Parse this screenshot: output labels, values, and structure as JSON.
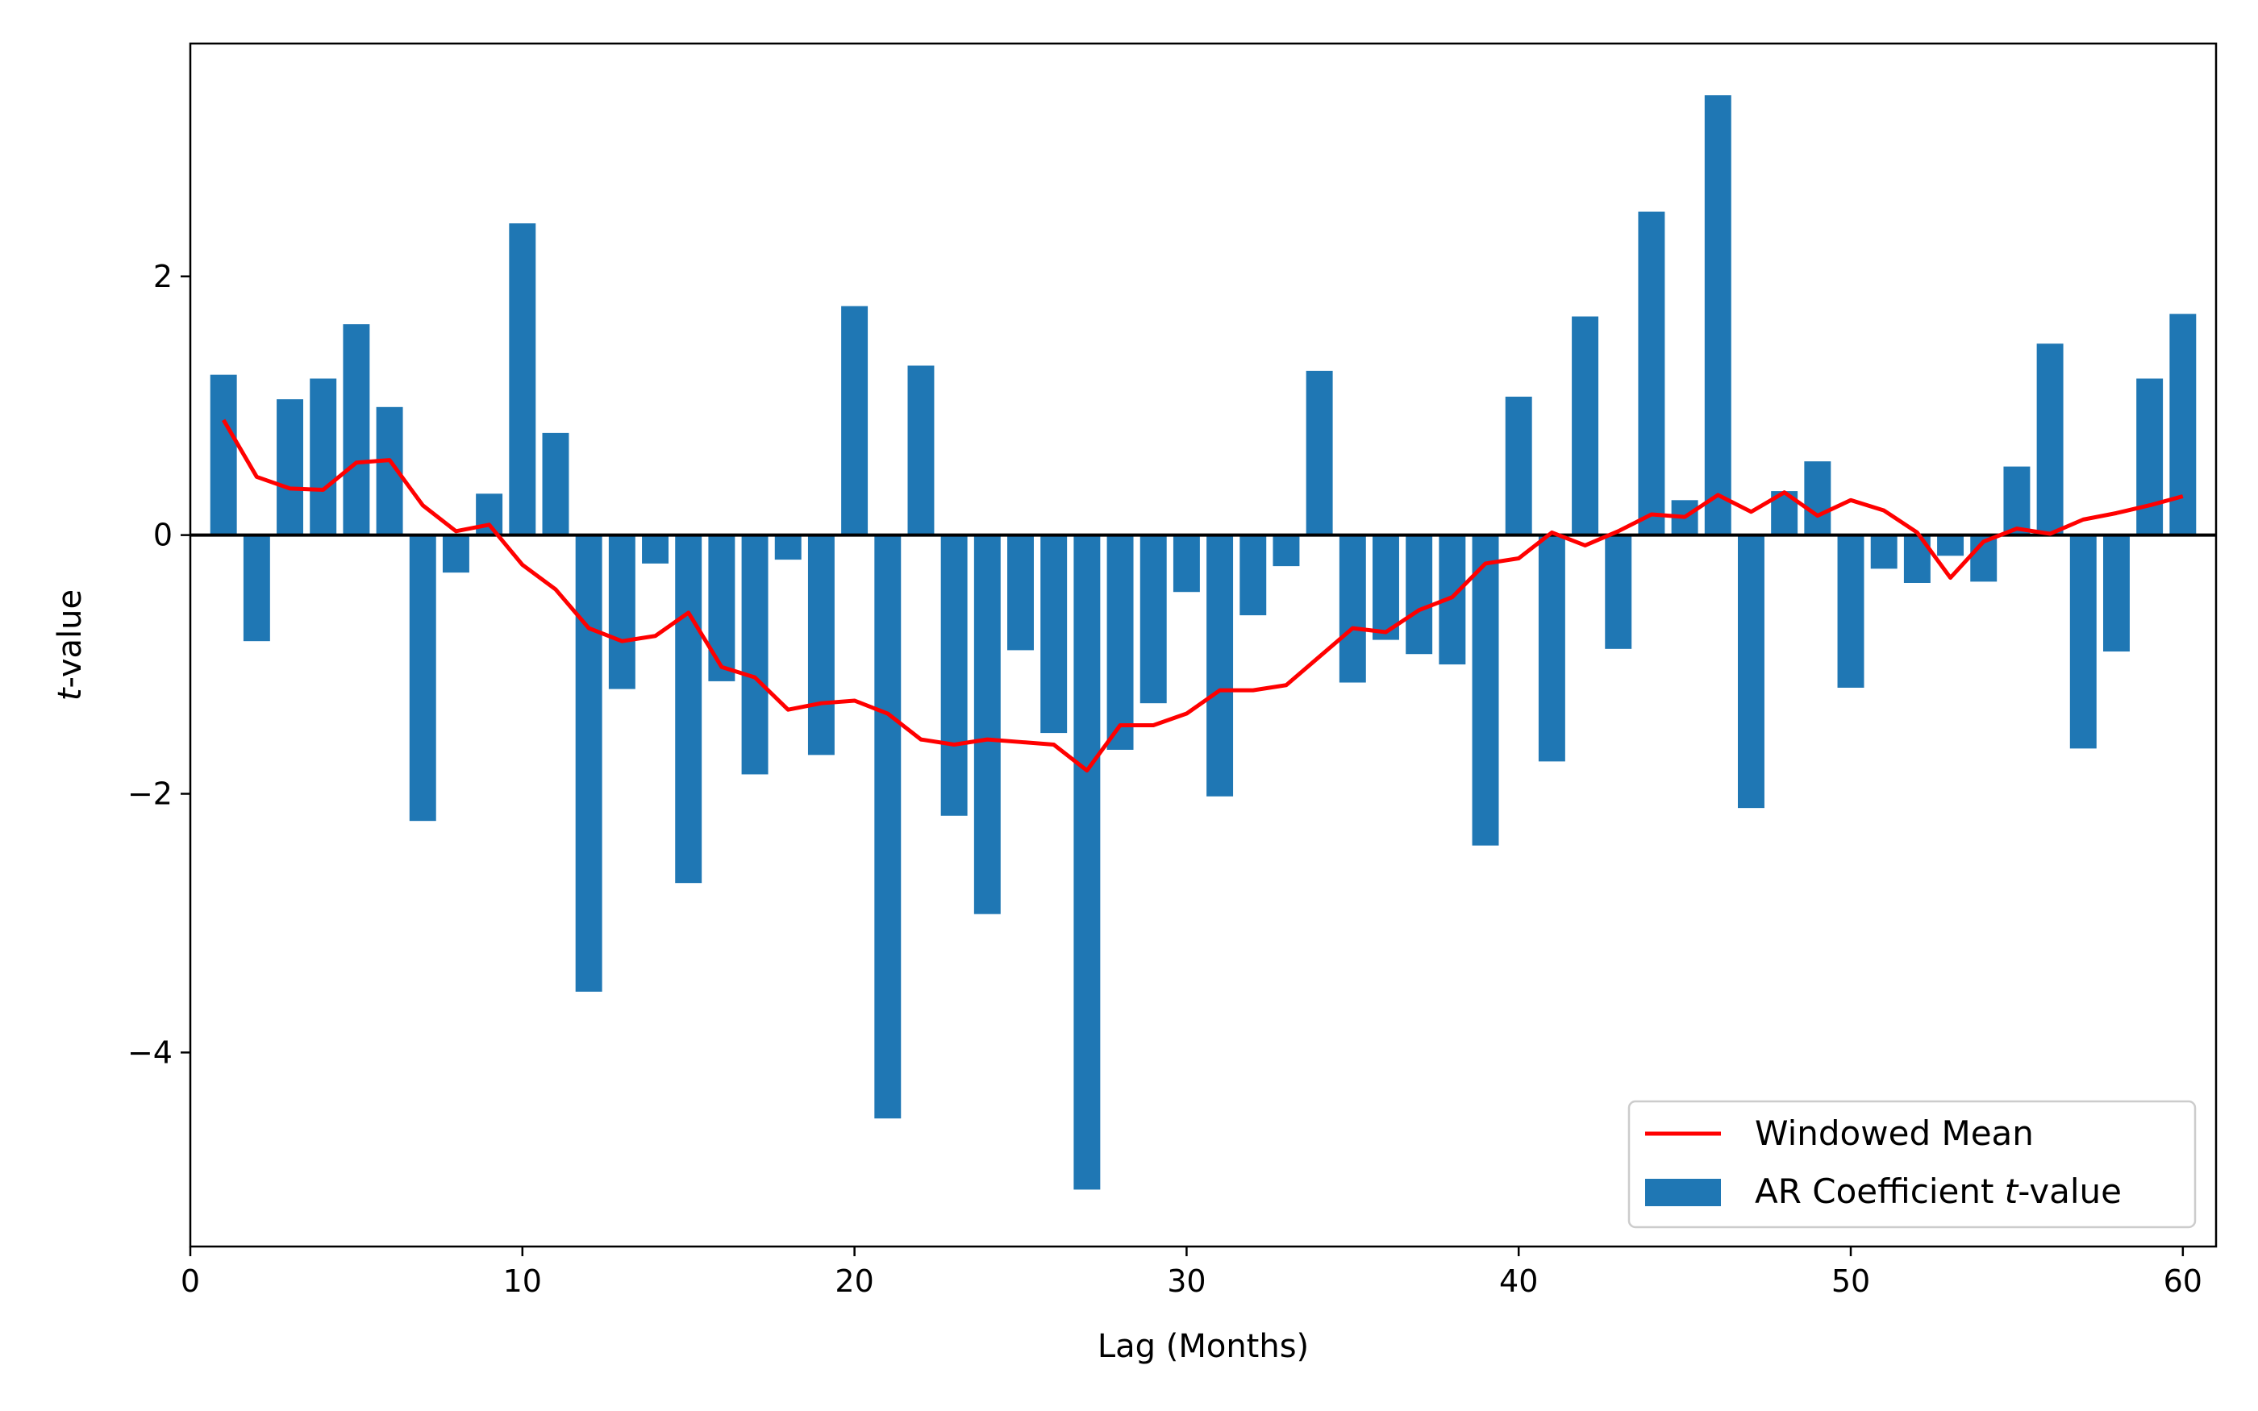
{
  "chart_data": {
    "type": "bar",
    "title": "",
    "xlabel": "Lag (Months)",
    "ylabel_italic": "t",
    "ylabel_rest": "-value",
    "xlim": [
      0,
      61
    ],
    "ylim": [
      -5.5,
      3.8
    ],
    "xticks": [
      0,
      10,
      20,
      30,
      40,
      50,
      60
    ],
    "yticks": [
      2,
      0,
      -2,
      -4
    ],
    "ytick_labels": [
      "2",
      "0",
      "−2",
      "−4"
    ],
    "grid": false,
    "legend_position": "bottom-right",
    "x": [
      1,
      2,
      3,
      4,
      5,
      6,
      7,
      8,
      9,
      10,
      11,
      12,
      13,
      14,
      15,
      16,
      17,
      18,
      19,
      20,
      21,
      22,
      23,
      24,
      25,
      26,
      27,
      28,
      29,
      30,
      31,
      32,
      33,
      34,
      35,
      36,
      37,
      38,
      39,
      40,
      41,
      42,
      43,
      44,
      45,
      46,
      47,
      48,
      49,
      50,
      51,
      52,
      53,
      54,
      55,
      56,
      57,
      58,
      59,
      60
    ],
    "series": [
      {
        "name_prefix": "AR Coefficient ",
        "name_italic": "t",
        "name_suffix": "-value",
        "type": "bar",
        "color": "#1f77b4",
        "values": [
          1.24,
          -0.82,
          1.05,
          1.21,
          1.63,
          0.99,
          -2.21,
          -0.29,
          0.32,
          2.41,
          0.79,
          -3.53,
          -1.19,
          -0.22,
          -2.69,
          -1.13,
          -1.85,
          -0.19,
          -1.7,
          1.77,
          -4.51,
          1.31,
          -2.17,
          -2.93,
          -0.89,
          -1.53,
          -5.06,
          -1.66,
          -1.3,
          -0.44,
          -2.02,
          -0.62,
          -0.24,
          1.27,
          -1.14,
          -0.81,
          -0.92,
          -1.0,
          -2.4,
          1.07,
          -1.75,
          1.69,
          -0.88,
          2.5,
          0.27,
          3.4,
          -2.11,
          0.34,
          0.57,
          -1.18,
          -0.26,
          -0.37,
          -0.16,
          -0.36,
          0.53,
          1.48,
          -1.65,
          -0.9,
          1.21,
          1.71
        ]
      },
      {
        "name": "Windowed Mean",
        "type": "line",
        "color": "#ff0000",
        "values": [
          0.89,
          0.45,
          0.36,
          0.35,
          0.56,
          0.58,
          0.23,
          0.03,
          0.08,
          -0.23,
          -0.42,
          -0.72,
          -0.82,
          -0.78,
          -0.6,
          -1.02,
          -1.1,
          -1.35,
          -1.3,
          -1.28,
          -1.38,
          -1.58,
          -1.62,
          -1.58,
          -1.6,
          -1.62,
          -1.82,
          -1.47,
          -1.47,
          -1.38,
          -1.2,
          -1.2,
          -1.16,
          -0.94,
          -0.72,
          -0.75,
          -0.58,
          -0.48,
          -0.22,
          -0.18,
          0.02,
          -0.08,
          0.03,
          0.16,
          0.14,
          0.31,
          0.18,
          0.33,
          0.15,
          0.27,
          0.19,
          0.02,
          -0.33,
          -0.05,
          0.05,
          0.01,
          0.12,
          0.17,
          0.23,
          0.3
        ]
      }
    ]
  }
}
